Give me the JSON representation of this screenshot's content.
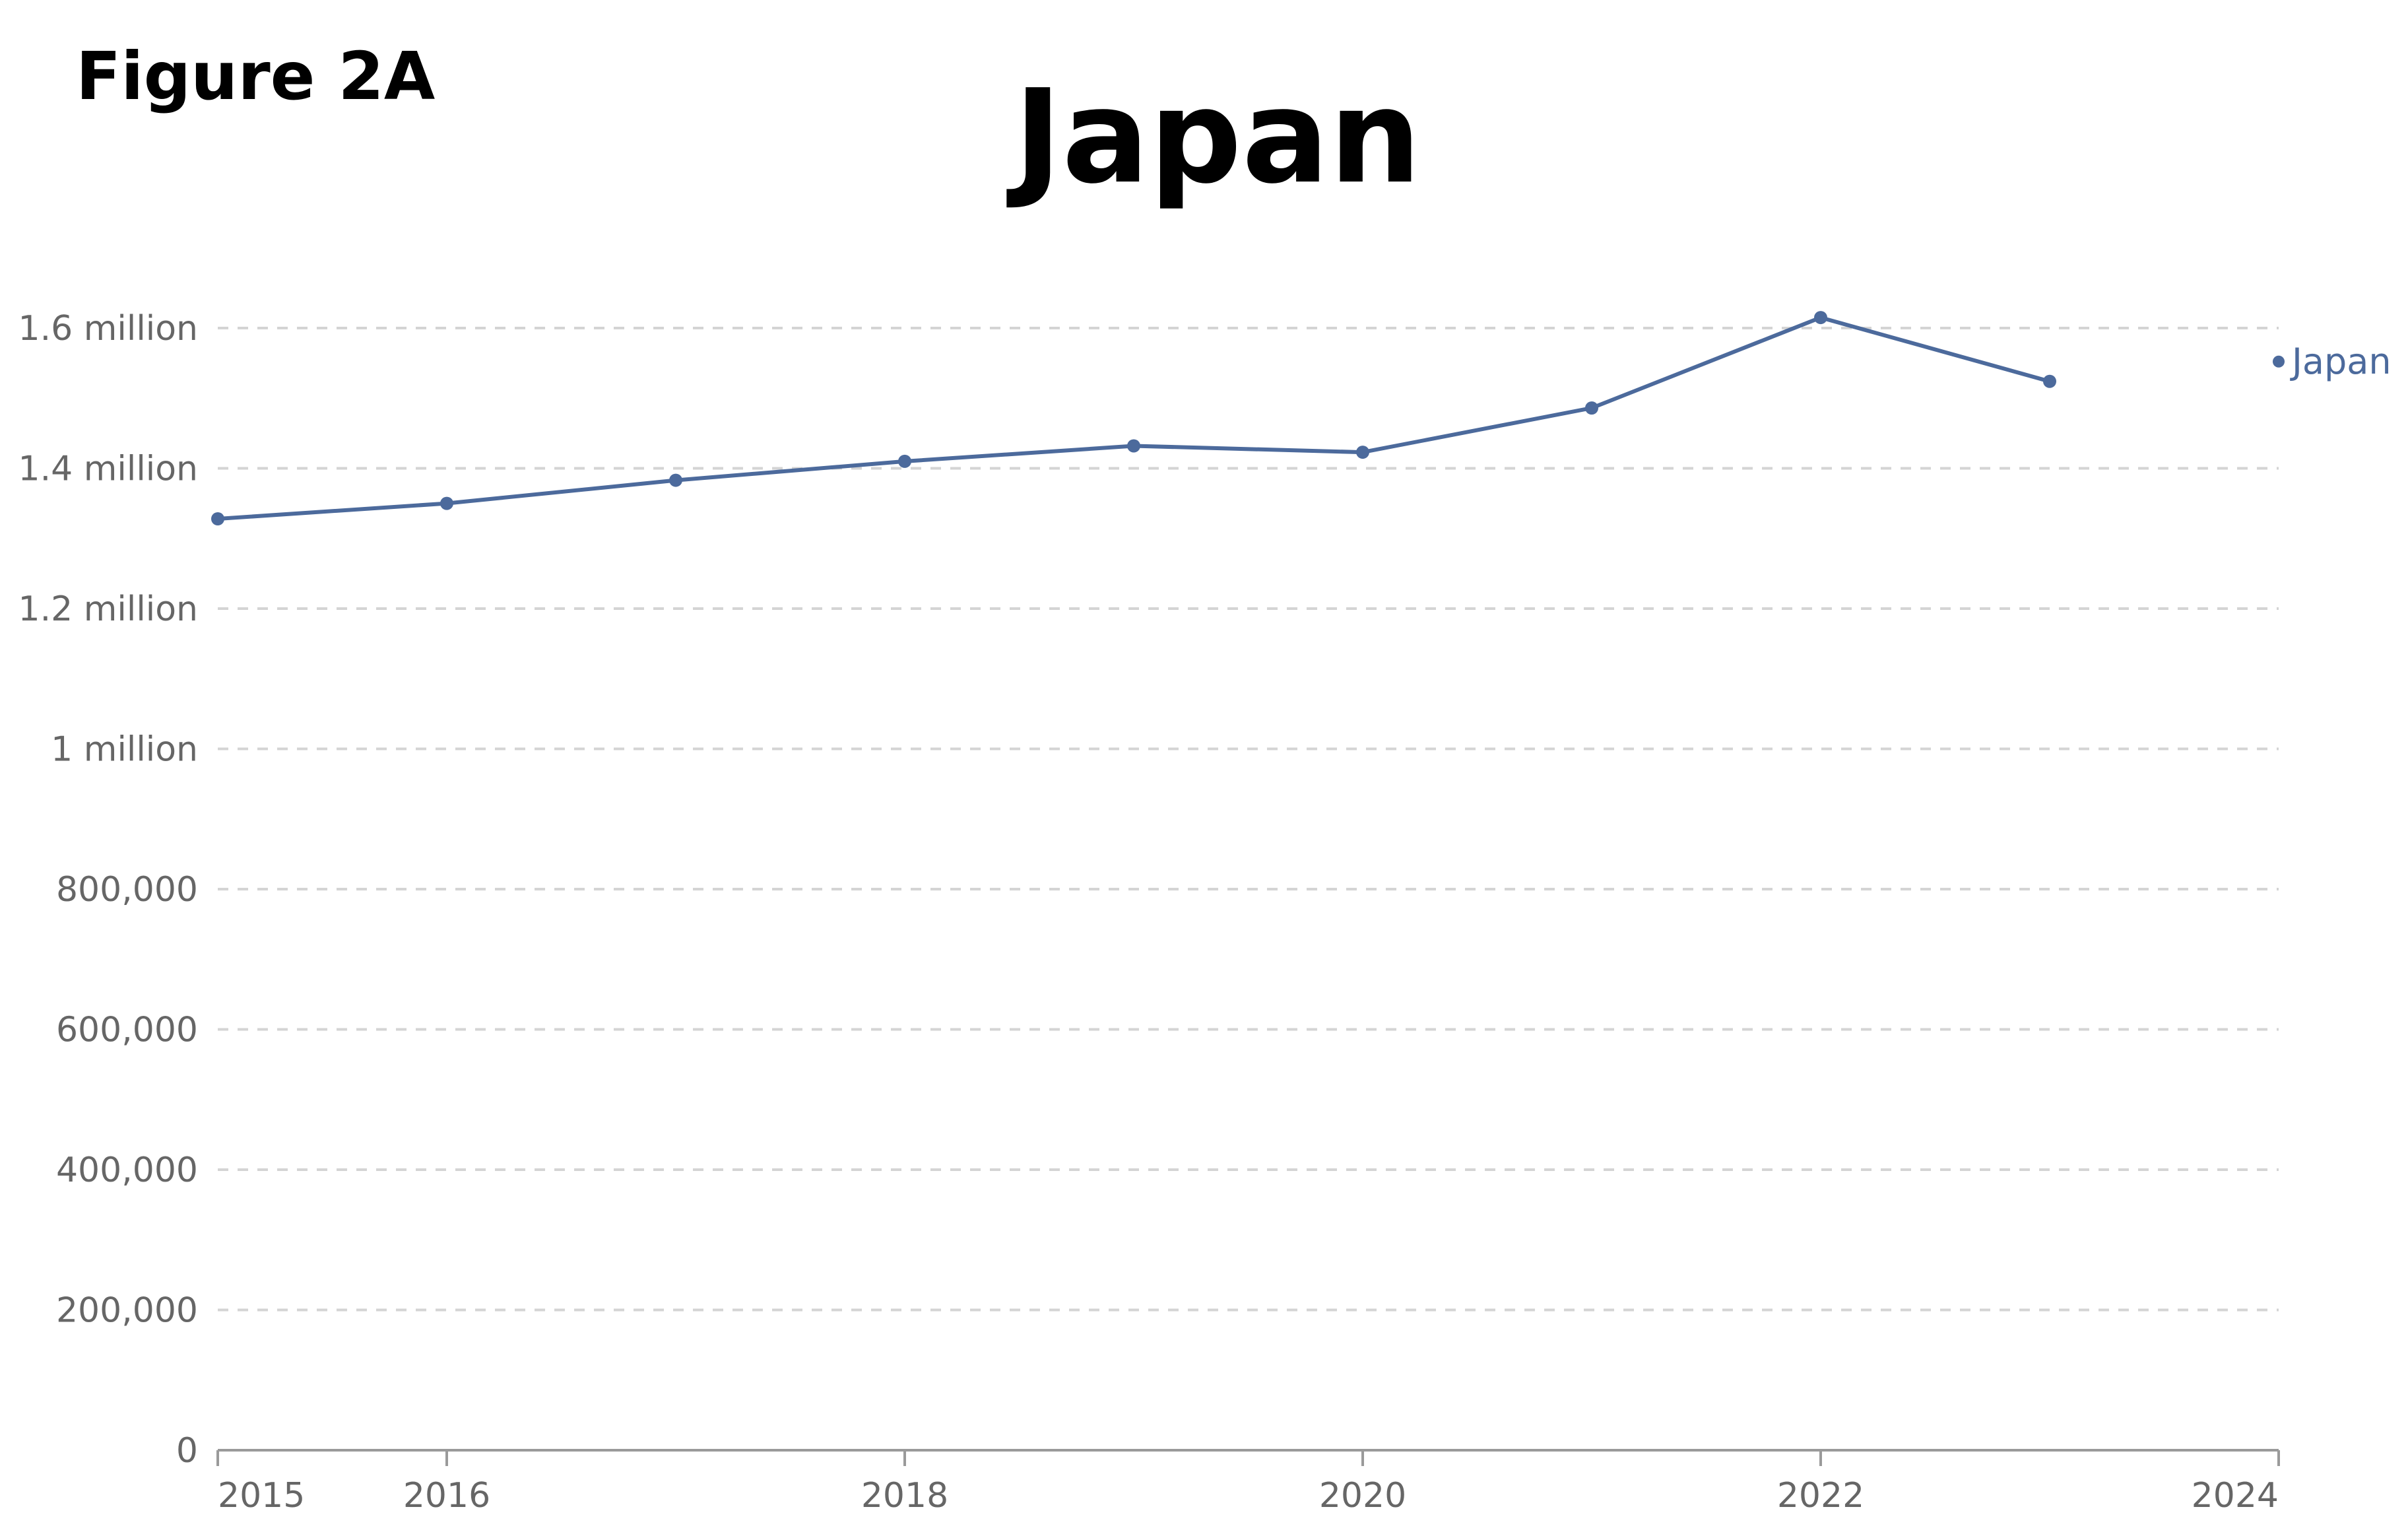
{
  "figure_label": "Figure 2A",
  "chart_data": {
    "type": "line",
    "title": "Japan",
    "xlabel": "",
    "ylabel": "",
    "x_ticks": [
      2015,
      2016,
      2018,
      2020,
      2022,
      2024
    ],
    "y_ticks": [
      {
        "value": 0,
        "label": "0"
      },
      {
        "value": 200000,
        "label": "200,000"
      },
      {
        "value": 400000,
        "label": "400,000"
      },
      {
        "value": 600000,
        "label": "600,000"
      },
      {
        "value": 800000,
        "label": "800,000"
      },
      {
        "value": 1000000,
        "label": "1 million"
      },
      {
        "value": 1200000,
        "label": "1.2 million"
      },
      {
        "value": 1400000,
        "label": "1.4 million"
      },
      {
        "value": 1600000,
        "label": "1.6 million"
      }
    ],
    "xlim": [
      2015,
      2024
    ],
    "ylim": [
      0,
      1600000
    ],
    "grid": "horizontal dashed",
    "legend": "right, at line end",
    "series": [
      {
        "name": "Japan",
        "color": "#4c6a9c",
        "x": [
          2015,
          2016,
          2017,
          2018,
          2019,
          2020,
          2021,
          2022,
          2023
        ],
        "y": [
          1328000,
          1350000,
          1383000,
          1410000,
          1432000,
          1423000,
          1486000,
          1615000,
          1524000
        ]
      }
    ]
  }
}
